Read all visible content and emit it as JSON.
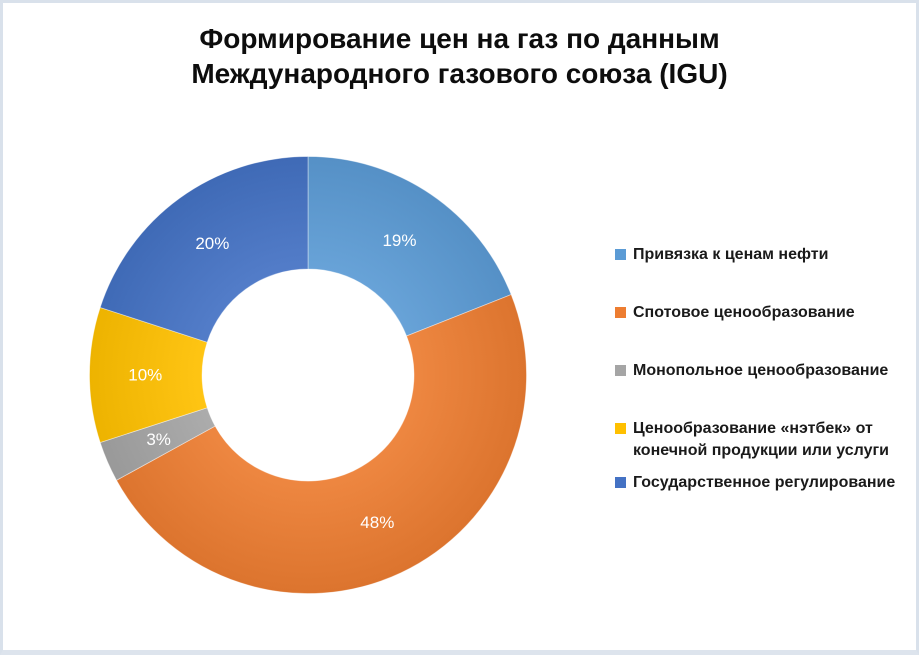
{
  "page": {
    "background": "#ffffff",
    "frame_border_color": "#d9e1eb"
  },
  "header": {
    "title_line1": "Формирование цен на газ по данным",
    "title_line2": "Международного газового союза (IGU)"
  },
  "chart_data": {
    "type": "pie",
    "subtype": "donut",
    "title": "Формирование цен на газ по данным Международного газового союза (IGU)",
    "unit": "%",
    "start_angle_deg": 0,
    "direction": "clockwise",
    "inner_radius_ratio": 0.485,
    "legend_position": "right",
    "categories": [
      "Привязка к ценам нефти",
      "Спотовое ценообразование",
      "Монопольное ценообразование",
      "Ценообразование «нэтбек» от конечной продукции или услуги",
      "Государственное регулирование"
    ],
    "legend_display": [
      "Привязка к ценам нефти",
      "Спотовое ценообразование",
      "Монопольное ценообразование",
      "Ценообразование «нэтбек» от\nконечной продукции или услуги",
      "Государственное регулирование"
    ],
    "values": [
      19,
      48,
      3,
      10,
      20
    ],
    "labels": [
      "19%",
      "48%",
      "3%",
      "10%",
      "20%"
    ],
    "colors": [
      "#5B9BD5",
      "#ED7D31",
      "#A5A5A5",
      "#FFC000",
      "#4472C4"
    ],
    "label_color": "#ffffff"
  }
}
